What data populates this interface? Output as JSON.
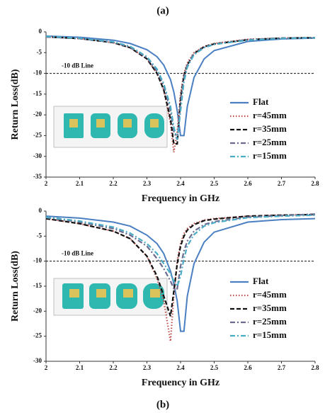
{
  "chart_data": [
    {
      "type": "line",
      "title": "(a)",
      "xlabel": "Frequency in GHz",
      "ylabel": "Return Loss(dB)",
      "x": [
        2.0,
        2.1,
        2.2,
        2.25,
        2.3,
        2.33,
        2.35,
        2.37,
        2.38,
        2.39,
        2.4,
        2.41,
        2.42,
        2.44,
        2.47,
        2.5,
        2.6,
        2.7,
        2.8
      ],
      "series": [
        {
          "name": "Flat",
          "color": "#4a7fc1",
          "style": "solid",
          "values": [
            -1,
            -1.3,
            -2,
            -2.8,
            -4.3,
            -6,
            -8,
            -11.5,
            -14.5,
            -19,
            -25,
            -25,
            -18,
            -11,
            -6.5,
            -4.5,
            -2.3,
            -1.7,
            -1.5
          ]
        },
        {
          "name": "r=45mm",
          "color": "#c0504d",
          "style": "dotted",
          "values": [
            -1.2,
            -1.6,
            -2.6,
            -3.8,
            -6.5,
            -10,
            -14,
            -22,
            -29,
            -24,
            -15,
            -10,
            -7.5,
            -5,
            -3.5,
            -2.8,
            -1.8,
            -1.5,
            -1.4
          ]
        },
        {
          "name": "r=35mm",
          "color": "#111111",
          "style": "dashed",
          "values": [
            -1.2,
            -1.6,
            -2.6,
            -3.8,
            -6.5,
            -10,
            -14,
            -21,
            -27,
            -27,
            -16,
            -10.5,
            -8,
            -5.2,
            -3.6,
            -2.9,
            -1.9,
            -1.5,
            -1.4
          ]
        },
        {
          "name": "r=25mm",
          "color": "#6b6b8f",
          "style": "dashdot",
          "values": [
            -1.2,
            -1.6,
            -2.5,
            -3.7,
            -6.2,
            -9.5,
            -13,
            -19,
            -24,
            -26,
            -17,
            -11,
            -8,
            -5.3,
            -3.7,
            -3,
            -1.9,
            -1.5,
            -1.4
          ]
        },
        {
          "name": "r=15mm",
          "color": "#4bacc6",
          "style": "dashdot",
          "values": [
            -1.1,
            -1.5,
            -2.4,
            -3.5,
            -6,
            -9,
            -12.5,
            -18,
            -23,
            -26,
            -19,
            -12,
            -8.5,
            -5.5,
            -3.8,
            -3,
            -2,
            -1.6,
            -1.4
          ]
        }
      ],
      "hline": -10,
      "hline_label": "-10 dB Line",
      "xlim": [
        2,
        2.8
      ],
      "xticks": [
        2,
        2.1,
        2.2,
        2.3,
        2.4,
        2.5,
        2.6,
        2.7,
        2.8
      ],
      "ylim": [
        -35,
        0
      ],
      "yticks": [
        0,
        -5,
        -10,
        -15,
        -20,
        -25,
        -30,
        -35
      ],
      "grid": false,
      "legend": "right"
    },
    {
      "type": "line",
      "caption": "(b)",
      "xlabel": "Frequency in GHz",
      "ylabel": "Return Loss(dB)",
      "x": [
        2.0,
        2.1,
        2.2,
        2.25,
        2.3,
        2.33,
        2.35,
        2.37,
        2.38,
        2.39,
        2.4,
        2.41,
        2.42,
        2.44,
        2.47,
        2.5,
        2.6,
        2.7,
        2.8
      ],
      "series": [
        {
          "name": "Flat",
          "color": "#4a7fc1",
          "style": "solid",
          "values": [
            -1,
            -1.4,
            -2.2,
            -3,
            -4.8,
            -6.5,
            -8.5,
            -12,
            -14.5,
            -18,
            -24,
            -24,
            -17,
            -10.5,
            -6.2,
            -4.2,
            -2.2,
            -1.7,
            -1.5
          ]
        },
        {
          "name": "r=45mm",
          "color": "#c0504d",
          "style": "dotted",
          "values": [
            -1.5,
            -2.5,
            -4,
            -5.5,
            -9,
            -13.5,
            -18,
            -26,
            -17,
            -10,
            -6.5,
            -4.5,
            -3.5,
            -2.5,
            -1.8,
            -1.5,
            -1,
            -0.8,
            -0.7
          ]
        },
        {
          "name": "r=35mm",
          "color": "#111111",
          "style": "dashed",
          "values": [
            -1.5,
            -2.5,
            -4,
            -5.5,
            -9,
            -13,
            -17,
            -21,
            -16,
            -10.5,
            -7,
            -5,
            -3.8,
            -2.7,
            -1.9,
            -1.6,
            -1,
            -0.8,
            -0.7
          ]
        },
        {
          "name": "r=25mm",
          "color": "#6b6b8f",
          "style": "dashdot",
          "values": [
            -1.3,
            -2.2,
            -3.5,
            -4.8,
            -7,
            -9.5,
            -11.5,
            -14,
            -15.5,
            -15.5,
            -11,
            -8,
            -6,
            -4,
            -2.7,
            -2.1,
            -1.2,
            -0.9,
            -0.6
          ]
        },
        {
          "name": "r=15mm",
          "color": "#4bacc6",
          "style": "dashdot",
          "values": [
            -1.2,
            -2,
            -3.2,
            -4.4,
            -6.5,
            -8.5,
            -10.5,
            -12.5,
            -14,
            -15,
            -13,
            -9.5,
            -7,
            -4.7,
            -3,
            -2.3,
            -1.3,
            -1,
            -0.8
          ]
        }
      ],
      "hline": -10,
      "hline_label": "-10 dB Line",
      "xlim": [
        2,
        2.8
      ],
      "xticks": [
        2,
        2.1,
        2.2,
        2.3,
        2.4,
        2.5,
        2.6,
        2.7,
        2.8
      ],
      "ylim": [
        -30,
        0
      ],
      "yticks": [
        0,
        -5,
        -10,
        -15,
        -20,
        -25,
        -30
      ],
      "grid": false,
      "legend": "right"
    }
  ]
}
